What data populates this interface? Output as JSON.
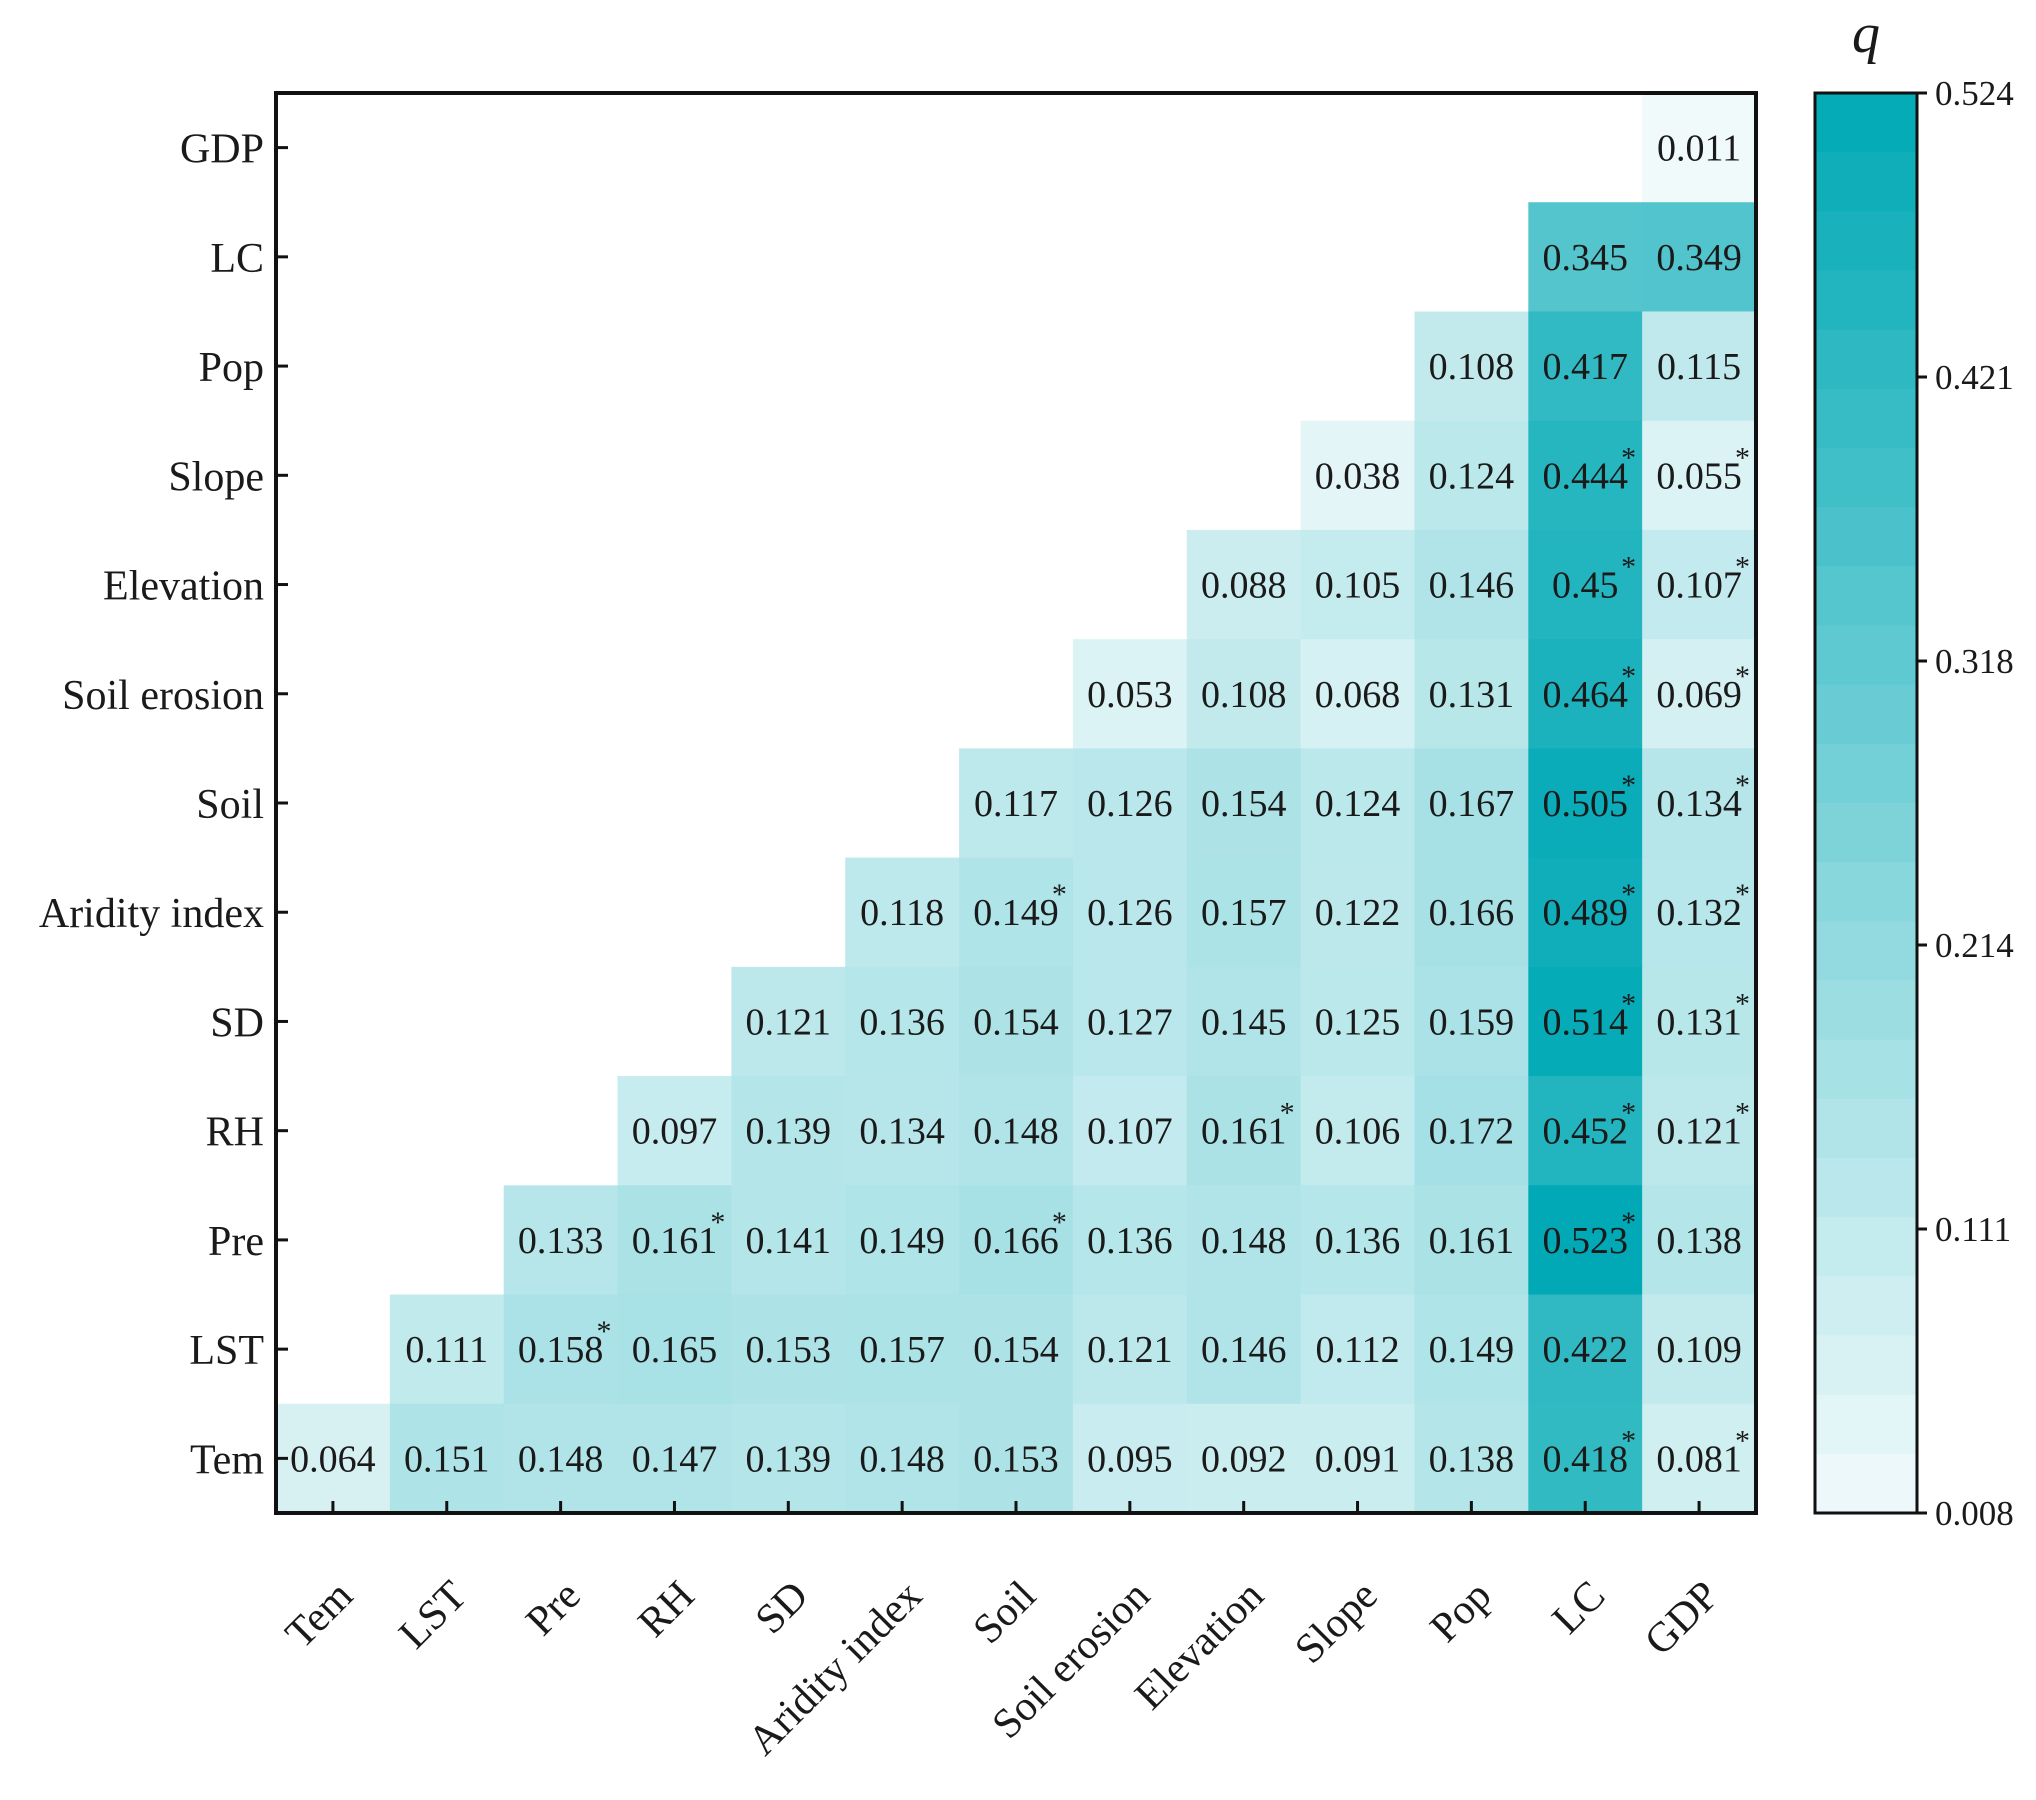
{
  "chart_data": {
    "type": "heatmap",
    "title": "",
    "factors": [
      "Tem",
      "LST",
      "Pre",
      "RH",
      "SD",
      "Aridity index",
      "Soil",
      "Soil erosion",
      "Elevation",
      "Slope",
      "Pop",
      "LC",
      "GDP"
    ],
    "y_labels_top_to_bottom": [
      "GDP",
      "LC",
      "Pop",
      "Slope",
      "Elevation",
      "Soil erosion",
      "Soil",
      "Aridity index",
      "SD",
      "RH",
      "Pre",
      "LST",
      "Tem"
    ],
    "x_labels_left_to_right": [
      "Tem",
      "LST",
      "Pre",
      "RH",
      "SD",
      "Aridity index",
      "Soil",
      "Soil erosion",
      "Elevation",
      "Slope",
      "Pop",
      "LC",
      "GDP"
    ],
    "rows": [
      {
        "factor": "GDP",
        "cells": [
          {
            "col": "GDP",
            "value": 0.011,
            "label": "0.011",
            "star": false
          }
        ]
      },
      {
        "factor": "LC",
        "cells": [
          {
            "col": "LC",
            "value": 0.345,
            "label": "0.345",
            "star": false
          },
          {
            "col": "GDP",
            "value": 0.349,
            "label": "0.349",
            "star": false
          }
        ]
      },
      {
        "factor": "Pop",
        "cells": [
          {
            "col": "Pop",
            "value": 0.108,
            "label": "0.108",
            "star": false
          },
          {
            "col": "LC",
            "value": 0.417,
            "label": "0.417",
            "star": false
          },
          {
            "col": "GDP",
            "value": 0.115,
            "label": "0.115",
            "star": false
          }
        ]
      },
      {
        "factor": "Slope",
        "cells": [
          {
            "col": "Slope",
            "value": 0.038,
            "label": "0.038",
            "star": false
          },
          {
            "col": "Pop",
            "value": 0.124,
            "label": "0.124",
            "star": false
          },
          {
            "col": "LC",
            "value": 0.444,
            "label": "0.444",
            "star": true
          },
          {
            "col": "GDP",
            "value": 0.055,
            "label": "0.055",
            "star": true
          }
        ]
      },
      {
        "factor": "Elevation",
        "cells": [
          {
            "col": "Elevation",
            "value": 0.088,
            "label": "0.088",
            "star": false
          },
          {
            "col": "Slope",
            "value": 0.105,
            "label": "0.105",
            "star": false
          },
          {
            "col": "Pop",
            "value": 0.146,
            "label": "0.146",
            "star": false
          },
          {
            "col": "LC",
            "value": 0.45,
            "label": "0.45",
            "star": true
          },
          {
            "col": "GDP",
            "value": 0.107,
            "label": "0.107",
            "star": true
          }
        ]
      },
      {
        "factor": "Soil erosion",
        "cells": [
          {
            "col": "Soil erosion",
            "value": 0.053,
            "label": "0.053",
            "star": false
          },
          {
            "col": "Elevation",
            "value": 0.108,
            "label": "0.108",
            "star": false
          },
          {
            "col": "Slope",
            "value": 0.068,
            "label": "0.068",
            "star": false
          },
          {
            "col": "Pop",
            "value": 0.131,
            "label": "0.131",
            "star": false
          },
          {
            "col": "LC",
            "value": 0.464,
            "label": "0.464",
            "star": true
          },
          {
            "col": "GDP",
            "value": 0.069,
            "label": "0.069",
            "star": true
          }
        ]
      },
      {
        "factor": "Soil",
        "cells": [
          {
            "col": "Soil",
            "value": 0.117,
            "label": "0.117",
            "star": false
          },
          {
            "col": "Soil erosion",
            "value": 0.126,
            "label": "0.126",
            "star": false
          },
          {
            "col": "Elevation",
            "value": 0.154,
            "label": "0.154",
            "star": false
          },
          {
            "col": "Slope",
            "value": 0.124,
            "label": "0.124",
            "star": false
          },
          {
            "col": "Pop",
            "value": 0.167,
            "label": "0.167",
            "star": false
          },
          {
            "col": "LC",
            "value": 0.505,
            "label": "0.505",
            "star": true
          },
          {
            "col": "GDP",
            "value": 0.134,
            "label": "0.134",
            "star": true
          }
        ]
      },
      {
        "factor": "Aridity index",
        "cells": [
          {
            "col": "Aridity index",
            "value": 0.118,
            "label": "0.118",
            "star": false
          },
          {
            "col": "Soil",
            "value": 0.149,
            "label": "0.149",
            "star": true
          },
          {
            "col": "Soil erosion",
            "value": 0.126,
            "label": "0.126",
            "star": false
          },
          {
            "col": "Elevation",
            "value": 0.157,
            "label": "0.157",
            "star": false
          },
          {
            "col": "Slope",
            "value": 0.122,
            "label": "0.122",
            "star": false
          },
          {
            "col": "Pop",
            "value": 0.166,
            "label": "0.166",
            "star": false
          },
          {
            "col": "LC",
            "value": 0.489,
            "label": "0.489",
            "star": true
          },
          {
            "col": "GDP",
            "value": 0.132,
            "label": "0.132",
            "star": true
          }
        ]
      },
      {
        "factor": "SD",
        "cells": [
          {
            "col": "SD",
            "value": 0.121,
            "label": "0.121",
            "star": false
          },
          {
            "col": "Aridity index",
            "value": 0.136,
            "label": "0.136",
            "star": false
          },
          {
            "col": "Soil",
            "value": 0.154,
            "label": "0.154",
            "star": false
          },
          {
            "col": "Soil erosion",
            "value": 0.127,
            "label": "0.127",
            "star": false
          },
          {
            "col": "Elevation",
            "value": 0.145,
            "label": "0.145",
            "star": false
          },
          {
            "col": "Slope",
            "value": 0.125,
            "label": "0.125",
            "star": false
          },
          {
            "col": "Pop",
            "value": 0.159,
            "label": "0.159",
            "star": false
          },
          {
            "col": "LC",
            "value": 0.514,
            "label": "0.514",
            "star": true
          },
          {
            "col": "GDP",
            "value": 0.131,
            "label": "0.131",
            "star": true
          }
        ]
      },
      {
        "factor": "RH",
        "cells": [
          {
            "col": "RH",
            "value": 0.097,
            "label": "0.097",
            "star": false
          },
          {
            "col": "SD",
            "value": 0.139,
            "label": "0.139",
            "star": false
          },
          {
            "col": "Aridity index",
            "value": 0.134,
            "label": "0.134",
            "star": false
          },
          {
            "col": "Soil",
            "value": 0.148,
            "label": "0.148",
            "star": false
          },
          {
            "col": "Soil erosion",
            "value": 0.107,
            "label": "0.107",
            "star": false
          },
          {
            "col": "Elevation",
            "value": 0.161,
            "label": "0.161",
            "star": true
          },
          {
            "col": "Slope",
            "value": 0.106,
            "label": "0.106",
            "star": false
          },
          {
            "col": "Pop",
            "value": 0.172,
            "label": "0.172",
            "star": false
          },
          {
            "col": "LC",
            "value": 0.452,
            "label": "0.452",
            "star": true
          },
          {
            "col": "GDP",
            "value": 0.121,
            "label": "0.121",
            "star": true
          }
        ]
      },
      {
        "factor": "Pre",
        "cells": [
          {
            "col": "Pre",
            "value": 0.133,
            "label": "0.133",
            "star": false
          },
          {
            "col": "RH",
            "value": 0.161,
            "label": "0.161",
            "star": true
          },
          {
            "col": "SD",
            "value": 0.141,
            "label": "0.141",
            "star": false
          },
          {
            "col": "Aridity index",
            "value": 0.149,
            "label": "0.149",
            "star": false
          },
          {
            "col": "Soil",
            "value": 0.166,
            "label": "0.166",
            "star": true
          },
          {
            "col": "Soil erosion",
            "value": 0.136,
            "label": "0.136",
            "star": false
          },
          {
            "col": "Elevation",
            "value": 0.148,
            "label": "0.148",
            "star": false
          },
          {
            "col": "Slope",
            "value": 0.136,
            "label": "0.136",
            "star": false
          },
          {
            "col": "Pop",
            "value": 0.161,
            "label": "0.161",
            "star": false
          },
          {
            "col": "LC",
            "value": 0.523,
            "label": "0.523",
            "star": true
          },
          {
            "col": "GDP",
            "value": 0.138,
            "label": "0.138",
            "star": false
          }
        ]
      },
      {
        "factor": "LST",
        "cells": [
          {
            "col": "LST",
            "value": 0.111,
            "label": "0.111",
            "star": false
          },
          {
            "col": "Pre",
            "value": 0.158,
            "label": "0.158",
            "star": true
          },
          {
            "col": "RH",
            "value": 0.165,
            "label": "0.165",
            "star": false
          },
          {
            "col": "SD",
            "value": 0.153,
            "label": "0.153",
            "star": false
          },
          {
            "col": "Aridity index",
            "value": 0.157,
            "label": "0.157",
            "star": false
          },
          {
            "col": "Soil",
            "value": 0.154,
            "label": "0.154",
            "star": false
          },
          {
            "col": "Soil erosion",
            "value": 0.121,
            "label": "0.121",
            "star": false
          },
          {
            "col": "Elevation",
            "value": 0.146,
            "label": "0.146",
            "star": false
          },
          {
            "col": "Slope",
            "value": 0.112,
            "label": "0.112",
            "star": false
          },
          {
            "col": "Pop",
            "value": 0.149,
            "label": "0.149",
            "star": false
          },
          {
            "col": "LC",
            "value": 0.422,
            "label": "0.422",
            "star": false
          },
          {
            "col": "GDP",
            "value": 0.109,
            "label": "0.109",
            "star": false
          }
        ]
      },
      {
        "factor": "Tem",
        "cells": [
          {
            "col": "Tem",
            "value": 0.064,
            "label": "0.064",
            "star": false
          },
          {
            "col": "LST",
            "value": 0.151,
            "label": "0.151",
            "star": false
          },
          {
            "col": "Pre",
            "value": 0.148,
            "label": "0.148",
            "star": false
          },
          {
            "col": "RH",
            "value": 0.147,
            "label": "0.147",
            "star": false
          },
          {
            "col": "SD",
            "value": 0.139,
            "label": "0.139",
            "star": false
          },
          {
            "col": "Aridity index",
            "value": 0.148,
            "label": "0.148",
            "star": false
          },
          {
            "col": "Soil",
            "value": 0.153,
            "label": "0.153",
            "star": false
          },
          {
            "col": "Soil erosion",
            "value": 0.095,
            "label": "0.095",
            "star": false
          },
          {
            "col": "Elevation",
            "value": 0.092,
            "label": "0.092",
            "star": false
          },
          {
            "col": "Slope",
            "value": 0.091,
            "label": "0.091",
            "star": false
          },
          {
            "col": "Pop",
            "value": 0.138,
            "label": "0.138",
            "star": false
          },
          {
            "col": "LC",
            "value": 0.418,
            "label": "0.418",
            "star": true
          },
          {
            "col": "GDP",
            "value": 0.081,
            "label": "0.081",
            "star": true
          }
        ]
      }
    ],
    "star_symbol": "*",
    "colorbar": {
      "title": "q",
      "min": 0.008,
      "max": 0.524,
      "ticks": [
        "0.524",
        "0.421",
        "0.318",
        "0.214",
        "0.111",
        "0.008"
      ],
      "low_color": "#f1fafb",
      "high_color": "#00a9b5"
    }
  }
}
